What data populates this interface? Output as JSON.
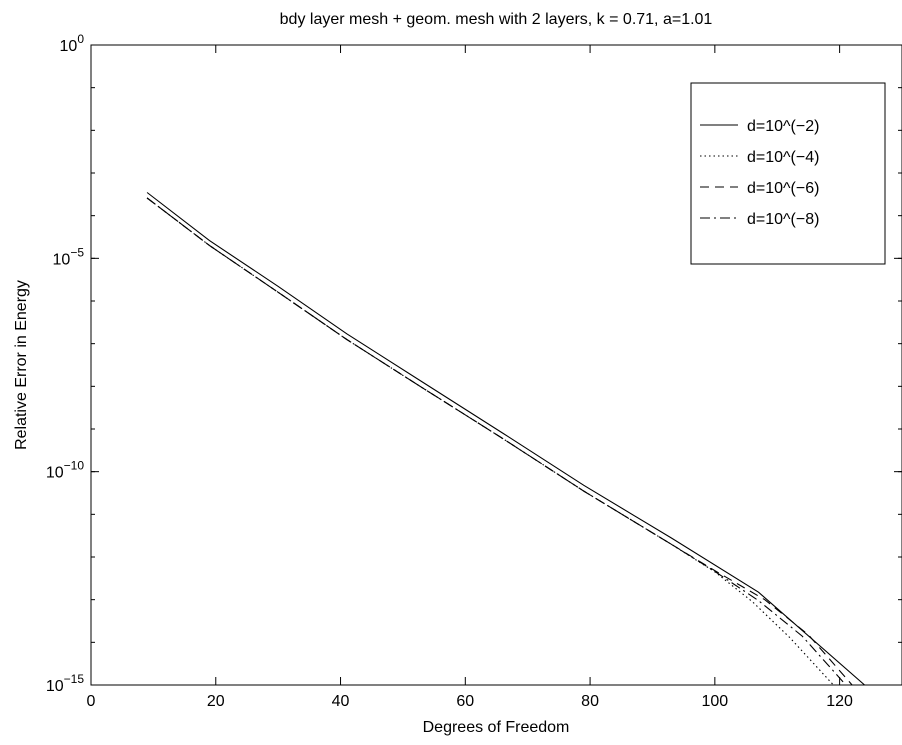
{
  "chart_data": {
    "type": "line",
    "title": "bdy layer mesh + geom. mesh with 2 layers, k = 0.71, a=1.01",
    "xlabel": "Degrees of Freedom",
    "ylabel": "Relative Error in Energy",
    "xlim": [
      0,
      130
    ],
    "ylim": [
      1e-15,
      1
    ],
    "yscale": "log",
    "xticks": [
      0,
      20,
      40,
      60,
      80,
      100,
      120
    ],
    "xtick_labels": [
      "0",
      "20",
      "40",
      "60",
      "80",
      "100",
      "120"
    ],
    "yticks": [
      {
        "value": 1e-15,
        "base": "10",
        "exp": "−15"
      },
      {
        "value": 1e-10,
        "base": "10",
        "exp": "−10"
      },
      {
        "value": 1e-05,
        "base": "10",
        "exp": "−5"
      },
      {
        "value": 1,
        "base": "10",
        "exp": "0"
      }
    ],
    "grid": false,
    "legend_position": "top-right",
    "series": [
      {
        "name": "d=10^(−2)",
        "style": "solid",
        "x": [
          9,
          19,
          30,
          41,
          53,
          66,
          79,
          93,
          107,
          124
        ],
        "y": [
          0.00035,
          2.6e-05,
          2.2e-06,
          1.7e-07,
          1.3e-08,
          8e-10,
          4.8e-11,
          2.8e-12,
          1.5e-13,
          1e-15
        ]
      },
      {
        "name": "d=10^(−4)",
        "style": "dotted",
        "x": [
          9,
          19,
          30,
          41,
          53,
          66,
          79,
          93,
          100,
          106,
          112,
          119
        ],
        "y": [
          0.00026,
          2e-05,
          1.6e-06,
          1.25e-07,
          9.5e-09,
          6e-10,
          3.5e-11,
          2e-12,
          4.5e-13,
          9e-14,
          1.3e-14,
          1e-15
        ]
      },
      {
        "name": "d=10^(−6)",
        "style": "dashed",
        "x": [
          9,
          19,
          30,
          41,
          53,
          66,
          79,
          93,
          100,
          108,
          115,
          122
        ],
        "y": [
          0.00026,
          2e-05,
          1.6e-06,
          1.25e-07,
          9.5e-09,
          6e-10,
          3.5e-11,
          2e-12,
          4.8e-13,
          1e-13,
          1.5e-14,
          1e-15
        ]
      },
      {
        "name": "d=10^(−8)",
        "style": "dashdot",
        "x": [
          9,
          19,
          30,
          41,
          53,
          66,
          79,
          93,
          100,
          107,
          114,
          121
        ],
        "y": [
          0.00026,
          2e-05,
          1.6e-06,
          1.25e-07,
          9.5e-09,
          6e-10,
          3.5e-11,
          2e-12,
          4.6e-13,
          9.5e-14,
          1.4e-14,
          1e-15
        ]
      }
    ]
  }
}
